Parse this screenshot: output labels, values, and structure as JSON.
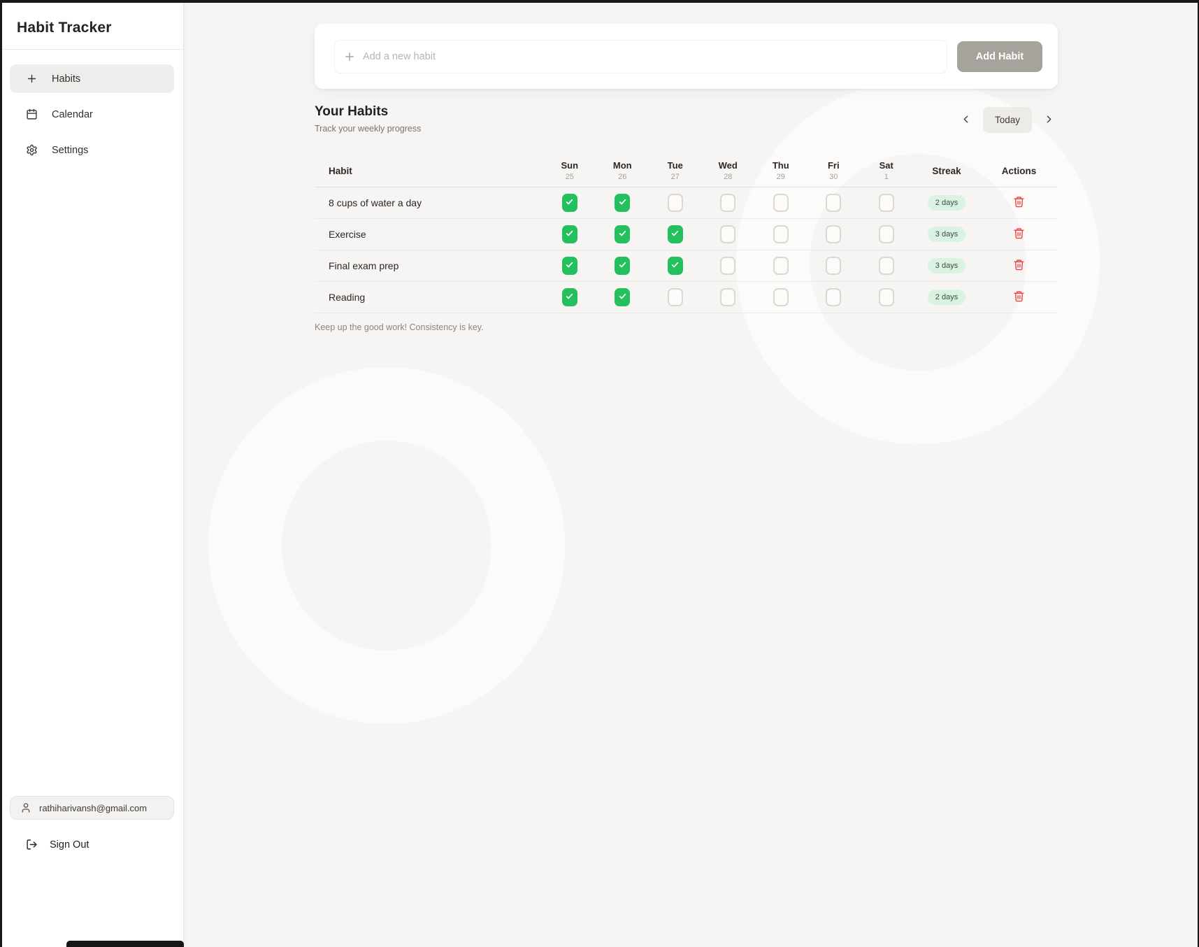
{
  "sidebar": {
    "title": "Habit Tracker",
    "nav": [
      {
        "label": "Habits",
        "icon": "plus-icon",
        "active": true
      },
      {
        "label": "Calendar",
        "icon": "calendar-icon",
        "active": false
      },
      {
        "label": "Settings",
        "icon": "gear-icon",
        "active": false
      }
    ],
    "user_email": "rathiharivansh@gmail.com",
    "sign_out_label": "Sign Out"
  },
  "add_habit": {
    "placeholder": "Add a new habit",
    "button_label": "Add Habit"
  },
  "habits_section": {
    "title": "Your Habits",
    "subtitle": "Track your weekly progress",
    "today_label": "Today",
    "footer_note": "Keep up the good work! Consistency is key."
  },
  "table": {
    "habit_header": "Habit",
    "streak_header": "Streak",
    "actions_header": "Actions",
    "days": [
      {
        "name": "Sun",
        "date": "25"
      },
      {
        "name": "Mon",
        "date": "26"
      },
      {
        "name": "Tue",
        "date": "27"
      },
      {
        "name": "Wed",
        "date": "28"
      },
      {
        "name": "Thu",
        "date": "29"
      },
      {
        "name": "Fri",
        "date": "30"
      },
      {
        "name": "Sat",
        "date": "1"
      }
    ],
    "rows": [
      {
        "habit": "8 cups of water a day",
        "checks": [
          true,
          true,
          false,
          false,
          false,
          false,
          false
        ],
        "streak": "2 days"
      },
      {
        "habit": "Exercise",
        "checks": [
          true,
          true,
          true,
          false,
          false,
          false,
          false
        ],
        "streak": "3 days"
      },
      {
        "habit": "Final exam prep",
        "checks": [
          true,
          true,
          true,
          false,
          false,
          false,
          false
        ],
        "streak": "3 days"
      },
      {
        "habit": "Reading",
        "checks": [
          true,
          true,
          false,
          false,
          false,
          false,
          false
        ],
        "streak": "2 days"
      }
    ]
  },
  "colors": {
    "accent_green": "#24c05e",
    "streak_badge_bg": "#d9f2e2",
    "streak_badge_text": "#3c4f43",
    "delete_red": "#ef4444",
    "add_button_bg": "#a6a29c",
    "background": "#f7f5f3"
  }
}
